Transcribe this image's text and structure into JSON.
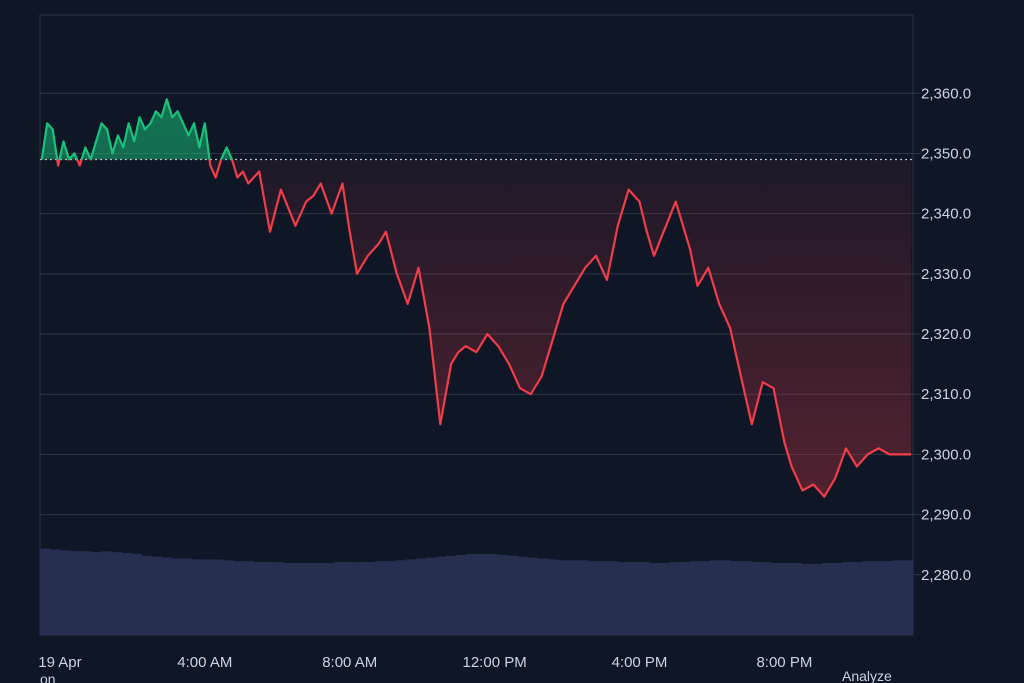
{
  "colors": {
    "background": "#0f1626",
    "grid": "#2d3547",
    "up": "#19c27a",
    "down": "#f03d48",
    "volume": "#262f4f",
    "baseline": "#b9bfca"
  },
  "footer": {
    "left": "on",
    "right": "Analyze"
  },
  "chart_data": {
    "type": "line",
    "baseline": 2349,
    "ylim": [
      2270,
      2373
    ],
    "y_ticks": [
      {
        "value": 2360,
        "label": "2,360.0"
      },
      {
        "value": 2350,
        "label": "2,350.0"
      },
      {
        "value": 2340,
        "label": "2,340.0"
      },
      {
        "value": 2330,
        "label": "2,330.0"
      },
      {
        "value": 2320,
        "label": "2,320.0"
      },
      {
        "value": 2310,
        "label": "2,310.0"
      },
      {
        "value": 2300,
        "label": "2,300.0"
      },
      {
        "value": 2290,
        "label": "2,290.0"
      },
      {
        "value": 2280,
        "label": "2,280.0"
      }
    ],
    "xlim": [
      -0.55,
      23.55
    ],
    "x_ticks": [
      {
        "value": 0,
        "label": "19 Apr"
      },
      {
        "value": 4,
        "label": "4:00 AM"
      },
      {
        "value": 8,
        "label": "8:00 AM"
      },
      {
        "value": 12,
        "label": "12:00 PM"
      },
      {
        "value": 16,
        "label": "4:00 PM"
      },
      {
        "value": 20,
        "label": "8:00 PM"
      }
    ],
    "series": [
      {
        "x": [
          -0.5,
          -0.35,
          -0.2,
          -0.05,
          0.1,
          0.25,
          0.4,
          0.55,
          0.7,
          0.85,
          1.0,
          1.15,
          1.3,
          1.45,
          1.6,
          1.75,
          1.9,
          2.05,
          2.2,
          2.35,
          2.5,
          2.65,
          2.8,
          2.95,
          3.1,
          3.25,
          3.4,
          3.55,
          3.7,
          3.85,
          4.0,
          4.15,
          4.3,
          4.45,
          4.6,
          4.75,
          4.9,
          5.05,
          5.2,
          5.5,
          5.8,
          6.1,
          6.5,
          6.8,
          7.0,
          7.2,
          7.5,
          7.8,
          8.0,
          8.2,
          8.5,
          8.8,
          9.0,
          9.3,
          9.6,
          9.9,
          10.2,
          10.5,
          10.8,
          11.0,
          11.2,
          11.5,
          11.8,
          12.1,
          12.4,
          12.7,
          13.0,
          13.3,
          13.6,
          13.9,
          14.2,
          14.5,
          14.8,
          15.1,
          15.4,
          15.7,
          16.0,
          16.2,
          16.4,
          16.6,
          16.8,
          17.0,
          17.2,
          17.4,
          17.6,
          17.9,
          18.2,
          18.5,
          18.8,
          19.1,
          19.4,
          19.7,
          20.0,
          20.2,
          20.5,
          20.8,
          21.1,
          21.4,
          21.7,
          22.0,
          22.3,
          22.6,
          22.9,
          23.1,
          23.3,
          23.5
        ],
        "y": [
          2349,
          2355,
          2354,
          2348,
          2352,
          2349,
          2350,
          2348,
          2351,
          2349,
          2352,
          2355,
          2354,
          2350,
          2353,
          2351,
          2355,
          2352,
          2356,
          2354,
          2355,
          2357,
          2356,
          2359,
          2356,
          2357,
          2355,
          2353,
          2355,
          2351,
          2355,
          2348,
          2346,
          2349,
          2351,
          2349,
          2346,
          2347,
          2345,
          2347,
          2337,
          2344,
          2338,
          2342,
          2343,
          2345,
          2340,
          2345,
          2337,
          2330,
          2333,
          2335,
          2337,
          2330,
          2325,
          2331,
          2321,
          2305,
          2315,
          2317,
          2318,
          2317,
          2320,
          2318,
          2315,
          2311,
          2310,
          2313,
          2319,
          2325,
          2328,
          2331,
          2333,
          2329,
          2338,
          2344,
          2342,
          2337,
          2333,
          2336,
          2339,
          2342,
          2338,
          2334,
          2328,
          2331,
          2325,
          2321,
          2313,
          2305,
          2312,
          2311,
          2302,
          2298,
          2294,
          2295,
          2293,
          2296,
          2301,
          2298,
          2300,
          2301,
          2300,
          2300,
          2300,
          2300
        ]
      }
    ],
    "volume": [
      0.96,
      0.95,
      0.94,
      0.93,
      0.93,
      0.92,
      0.93,
      0.92,
      0.91,
      0.9,
      0.88,
      0.87,
      0.86,
      0.85,
      0.85,
      0.84,
      0.84,
      0.84,
      0.83,
      0.82,
      0.82,
      0.81,
      0.81,
      0.81,
      0.8,
      0.8,
      0.8,
      0.8,
      0.8,
      0.81,
      0.81,
      0.81,
      0.81,
      0.82,
      0.82,
      0.83,
      0.84,
      0.85,
      0.86,
      0.87,
      0.88,
      0.89,
      0.9,
      0.9,
      0.9,
      0.89,
      0.88,
      0.87,
      0.86,
      0.85,
      0.84,
      0.83,
      0.83,
      0.83,
      0.82,
      0.82,
      0.82,
      0.81,
      0.81,
      0.81,
      0.8,
      0.8,
      0.81,
      0.81,
      0.82,
      0.82,
      0.83,
      0.83,
      0.82,
      0.82,
      0.81,
      0.81,
      0.8,
      0.8,
      0.8,
      0.79,
      0.79,
      0.8,
      0.8,
      0.81,
      0.81,
      0.82,
      0.82,
      0.82,
      0.83,
      0.83
    ]
  }
}
